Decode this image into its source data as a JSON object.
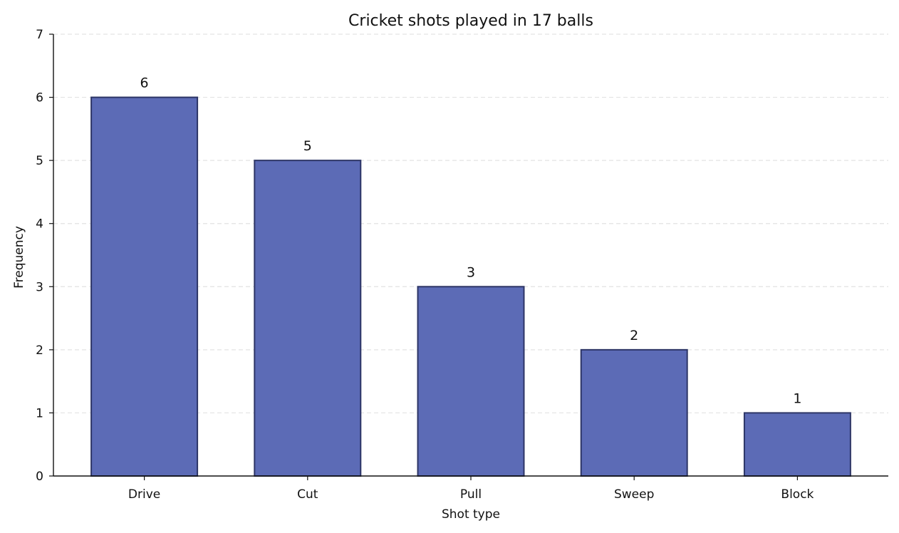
{
  "chart_data": {
    "type": "bar",
    "title": "Cricket shots played in 17 balls",
    "xlabel": "Shot type",
    "ylabel": "Frequency",
    "categories": [
      "Drive",
      "Cut",
      "Pull",
      "Sweep",
      "Block"
    ],
    "values": [
      6,
      5,
      3,
      2,
      1
    ],
    "data_labels": [
      "6",
      "5",
      "3",
      "2",
      "1"
    ],
    "ylim": [
      0,
      7
    ],
    "yticks": [
      0,
      1,
      2,
      3,
      4,
      5,
      6,
      7
    ],
    "ytick_labels": [
      "0",
      "1",
      "2",
      "3",
      "4",
      "5",
      "6",
      "7"
    ],
    "grid": {
      "axis": "y",
      "style": "dashed"
    },
    "legend": "none",
    "colors": {
      "bar_fill": "#5c6bb6",
      "bar_edge": "#2d3566",
      "grid": "#e3e3e3",
      "axis": "#111111",
      "text": "#111111"
    }
  }
}
